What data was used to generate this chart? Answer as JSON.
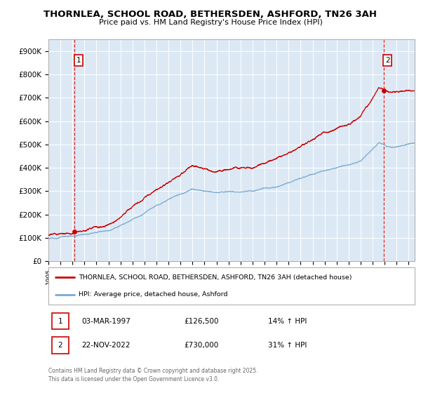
{
  "title": "THORNLEA, SCHOOL ROAD, BETHERSDEN, ASHFORD, TN26 3AH",
  "subtitle": "Price paid vs. HM Land Registry's House Price Index (HPI)",
  "background_color": "#dce9f5",
  "ylim": [
    0,
    950000
  ],
  "yticks": [
    0,
    100000,
    200000,
    300000,
    400000,
    500000,
    600000,
    700000,
    800000,
    900000
  ],
  "ytick_labels": [
    "£0",
    "£100K",
    "£200K",
    "£300K",
    "£400K",
    "£500K",
    "£600K",
    "£700K",
    "£800K",
    "£900K"
  ],
  "legend_line1": "THORNLEA, SCHOOL ROAD, BETHERSDEN, ASHFORD, TN26 3AH (detached house)",
  "legend_line2": "HPI: Average price, detached house, Ashford",
  "annotation1_date": "03-MAR-1997",
  "annotation1_price": "£126,500",
  "annotation1_hpi": "14% ↑ HPI",
  "annotation2_date": "22-NOV-2022",
  "annotation2_price": "£730,000",
  "annotation2_hpi": "31% ↑ HPI",
  "footer": "Contains HM Land Registry data © Crown copyright and database right 2025.\nThis data is licensed under the Open Government Licence v3.0.",
  "line1_color": "#cc0000",
  "line2_color": "#7aaad0",
  "marker_color": "#cc0000",
  "dashed_color": "#cc0000",
  "sale1_x": 1997.17,
  "sale1_y": 126500,
  "sale2_x": 2022.9,
  "sale2_y": 730000,
  "xlim_left": 1995.0,
  "xlim_right": 2025.5
}
